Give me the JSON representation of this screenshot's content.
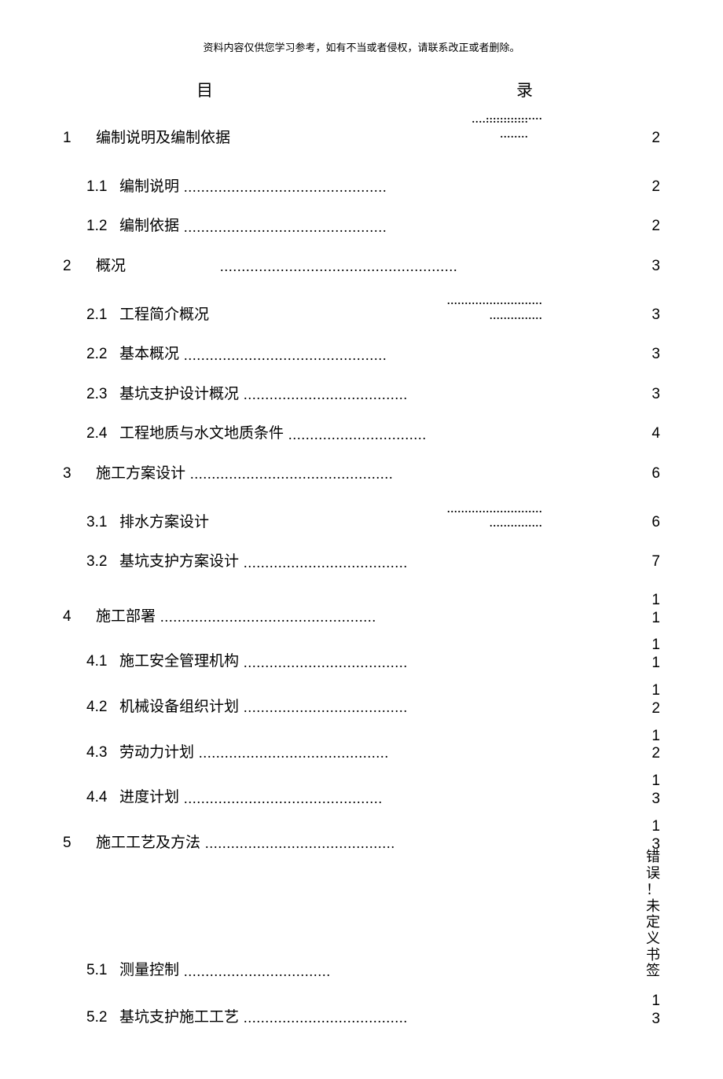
{
  "header_note": "资料内容仅供您学习参考，如有不当或者侵权，请联系改正或者删除。",
  "toc_title": {
    "left": "目",
    "right": "录"
  },
  "header_dots": {
    "line1": "................",
    "line2": "................"
  },
  "entries": [
    {
      "level": 1,
      "num": "1",
      "label": "编制说明及编制依据",
      "dots_short": "........",
      "page": "2",
      "stacked_header_dots": true
    },
    {
      "level": 2,
      "num": "1.1",
      "label": "编制说明",
      "dots": "...............................................",
      "page": "2"
    },
    {
      "level": 2,
      "num": "1.2",
      "label": "编制依据",
      "dots": "...............................................",
      "page": "2"
    },
    {
      "level": 1,
      "num": "2",
      "label": "概况",
      "dots": ".......................................................",
      "dots_indent": true,
      "page": "3"
    },
    {
      "level": 2,
      "num": "2.1",
      "label": "工程简介概况",
      "stacked_dots": [
        "...........................",
        "..............."
      ],
      "page": "3"
    },
    {
      "level": 2,
      "num": "2.2",
      "label": "基本概况",
      "dots": "...............................................",
      "page": "3"
    },
    {
      "level": 2,
      "num": "2.3",
      "label": "基坑支护设计概况",
      "dots": "......................................",
      "page": "3"
    },
    {
      "level": 2,
      "num": "2.4",
      "label": "工程地质与水文地质条件",
      "dots": "................................",
      "page": "4"
    },
    {
      "level": 1,
      "num": "3",
      "label": "施工方案设计",
      "dots": "...............................................",
      "page": "6"
    },
    {
      "level": 2,
      "num": "3.1",
      "label": "排水方案设计",
      "stacked_dots": [
        "...........................",
        "..............."
      ],
      "page": "6"
    },
    {
      "level": 2,
      "num": "3.2",
      "label": "基坑支护方案设计",
      "dots": "......................................",
      "page": "7"
    },
    {
      "level": 1,
      "num": "4",
      "label": "施工部署",
      "dots": "..................................................",
      "page_stacked": [
        "1",
        "1"
      ],
      "tight": true
    },
    {
      "level": 2,
      "num": "4.1",
      "label": "施工安全管理机构",
      "dots": "......................................",
      "page_stacked": [
        "1",
        "1"
      ],
      "tight": true
    },
    {
      "level": 2,
      "num": "4.2",
      "label": "机械设备组织计划",
      "dots": "......................................",
      "page_stacked": [
        "1",
        "2"
      ],
      "tight": true
    },
    {
      "level": 2,
      "num": "4.3",
      "label": "劳动力计划",
      "dots": "............................................",
      "page_stacked": [
        "1",
        "2"
      ],
      "tight": true
    },
    {
      "level": 2,
      "num": "4.4",
      "label": "进度计划",
      "dots": "..............................................",
      "page_stacked": [
        "1",
        "3"
      ],
      "tight": true
    },
    {
      "level": 1,
      "num": "5",
      "label": "施工工艺及方法",
      "dots": "............................................",
      "page_stacked": [
        "1",
        "3"
      ],
      "vtight": true
    },
    {
      "level": 2,
      "num": "5.1",
      "label": "测量控制",
      "dots": "..................................",
      "page_vertical": [
        "错",
        "误",
        "！",
        "未",
        "定",
        "义",
        "书",
        "签"
      ],
      "big_spacer": true
    },
    {
      "level": 2,
      "num": "5.2",
      "label": "基坑支护施工工艺",
      "dots": "......................................",
      "page_stacked": [
        "1",
        "3"
      ]
    }
  ],
  "dot_fill": "......................................................................................................................................"
}
